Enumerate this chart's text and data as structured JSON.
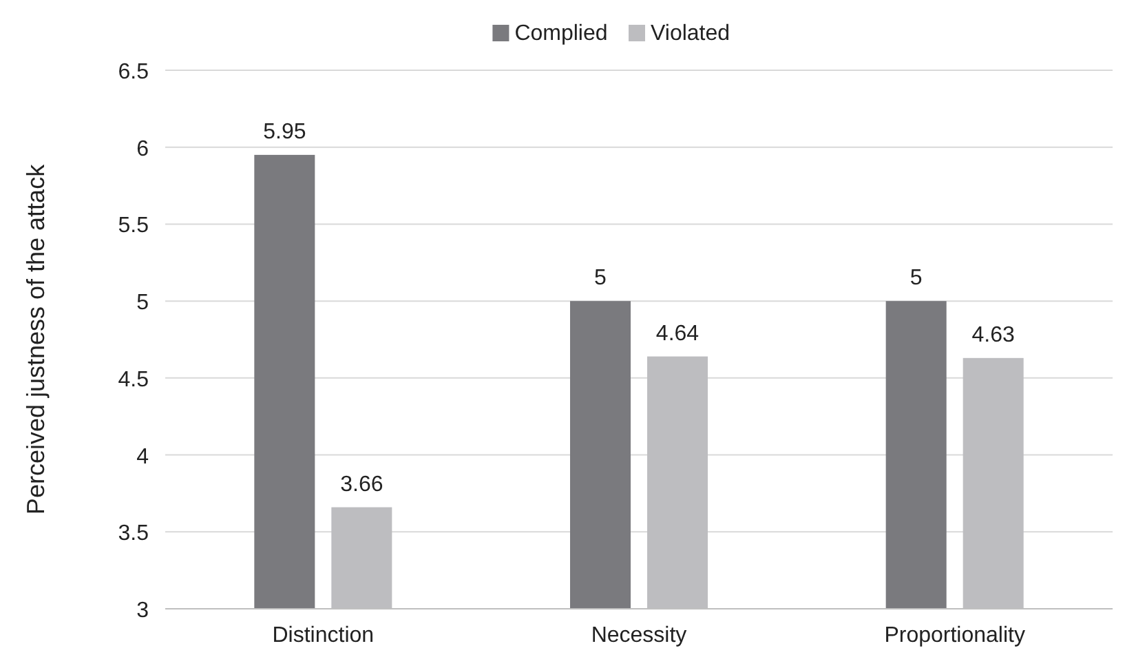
{
  "chart_data": {
    "type": "bar",
    "ylabel": "Perceived justness of the attack",
    "categories": [
      "Distinction",
      "Necessity",
      "Proportionality"
    ],
    "series": [
      {
        "name": "Complied",
        "color": "#7a7a7e",
        "values": [
          5.95,
          5,
          5
        ]
      },
      {
        "name": "Violated",
        "color": "#bdbdc0",
        "values": [
          3.66,
          4.64,
          4.63
        ]
      }
    ],
    "ylim": [
      3,
      6.5
    ],
    "yticks": [
      3,
      3.5,
      4,
      4.5,
      5,
      5.5,
      6,
      6.5
    ],
    "grid": "y",
    "legend": "top",
    "data_labels": true
  }
}
